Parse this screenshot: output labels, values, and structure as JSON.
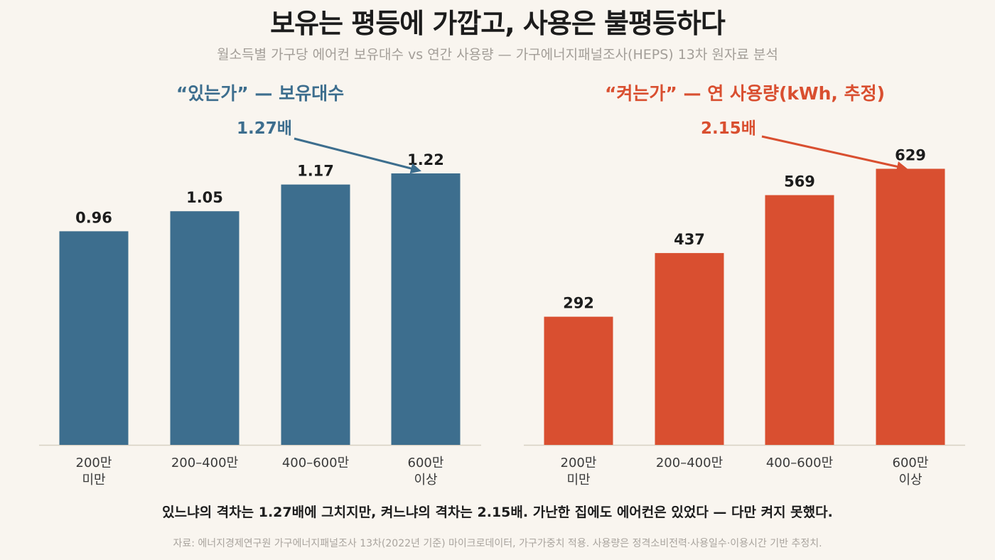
{
  "title": "보유는 평등에 가깝고, 사용은 불평등하다",
  "subtitle": "월소득별 가구당 에어컨 보유대수 vs 연간 사용량 — 가구에너지패널조사(HEPS) 13차 원자료 분석",
  "caption": "있느냐의 격차는 1.27배에 그치지만, 켜느냐의 격차는 2.15배. 가난한 집에도 에어컨은 있었다 — 다만 켜지 못했다.",
  "source": "자료: 에너지경제연구원 가구에너지패널조사 13차(2022년 기준) 마이크로데이터, 가구가중치 적용. 사용량은 정격소비전력·사용일수·이용시간 기반 추정치.",
  "chart_data": [
    {
      "type": "bar",
      "title": "“있는가” — 보유대수",
      "color": "#3d6e8e",
      "categories": [
        [
          "200만",
          "미만"
        ],
        [
          "200–400만"
        ],
        [
          "400–600만"
        ],
        [
          "600만",
          "이상"
        ]
      ],
      "values": [
        0.96,
        1.05,
        1.17,
        1.22
      ],
      "value_labels": [
        "0.96",
        "1.05",
        "1.17",
        "1.22"
      ],
      "annotation": "1.27배"
    },
    {
      "type": "bar",
      "title": "“켜는가” — 연 사용량(kWh, 추정)",
      "color": "#d94f30",
      "categories": [
        [
          "200만",
          "미만"
        ],
        [
          "200–400만"
        ],
        [
          "400–600만"
        ],
        [
          "600만",
          "이상"
        ]
      ],
      "values": [
        292,
        437,
        569,
        629
      ],
      "value_labels": [
        "292",
        "437",
        "569",
        "629"
      ],
      "annotation": "2.15배"
    }
  ]
}
